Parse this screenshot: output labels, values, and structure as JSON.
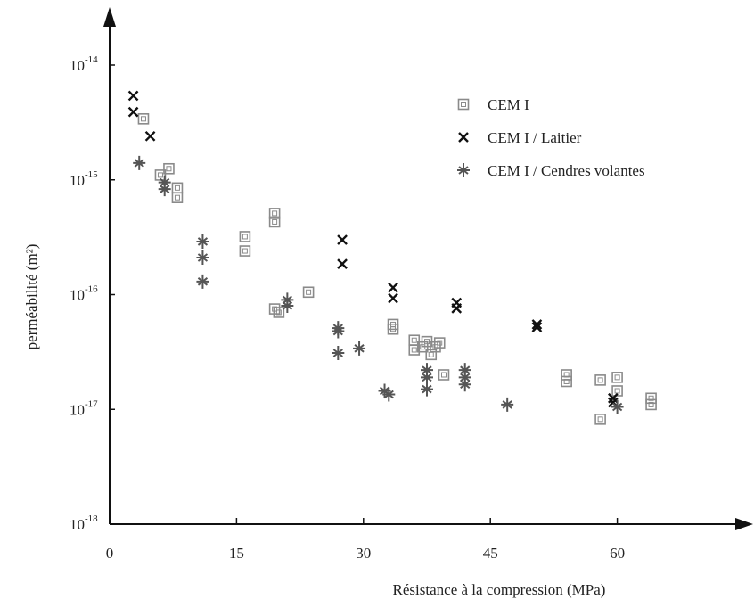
{
  "chart_data": {
    "type": "scatter",
    "xlabel": "Résistance à la compression (MPa)",
    "ylabel": "perméabilité (m²)",
    "xlim": [
      0,
      75
    ],
    "ylim": [
      1e-18,
      1e-14
    ],
    "yscale": "log",
    "grid": false,
    "legend_position": "top-right",
    "x_ticks": [
      {
        "value": 0,
        "label": "0"
      },
      {
        "value": 15,
        "label": "15"
      },
      {
        "value": 30,
        "label": "30"
      },
      {
        "value": 45,
        "label": "45"
      },
      {
        "value": 60,
        "label": "60"
      }
    ],
    "y_ticks": [
      {
        "value": 1e-14,
        "base": "10",
        "exp": "-14"
      },
      {
        "value": 1e-15,
        "base": "10",
        "exp": "-15"
      },
      {
        "value": 1e-16,
        "base": "10",
        "exp": "-16"
      },
      {
        "value": 1e-17,
        "base": "10",
        "exp": "-17"
      },
      {
        "value": 1e-18,
        "base": "10",
        "exp": "-18"
      }
    ],
    "series": [
      {
        "name": "CEM I",
        "marker": "square",
        "color": "#8a8a8a",
        "points": [
          [
            4,
            3.4e-15
          ],
          [
            6,
            1.1e-15
          ],
          [
            7,
            1.25e-15
          ],
          [
            8,
            8.5e-16
          ],
          [
            8,
            7e-16
          ],
          [
            16,
            3.2e-16
          ],
          [
            16,
            2.4e-16
          ],
          [
            19.5,
            5.1e-16
          ],
          [
            19.5,
            4.3e-16
          ],
          [
            19.5,
            7.5e-17
          ],
          [
            20,
            7e-17
          ],
          [
            23.5,
            1.05e-16
          ],
          [
            33.5,
            5.5e-17
          ],
          [
            33.5,
            5e-17
          ],
          [
            36,
            4e-17
          ],
          [
            36,
            3.3e-17
          ],
          [
            37,
            3.5e-17
          ],
          [
            37.5,
            3.9e-17
          ],
          [
            38,
            3e-17
          ],
          [
            38.5,
            3.5e-17
          ],
          [
            39,
            3.8e-17
          ],
          [
            39.5,
            2e-17
          ],
          [
            54,
            2e-17
          ],
          [
            54,
            1.75e-17
          ],
          [
            58,
            1.8e-17
          ],
          [
            58,
            8.2e-18
          ],
          [
            60,
            1.9e-17
          ],
          [
            60,
            1.45e-17
          ],
          [
            64,
            1.25e-17
          ],
          [
            64,
            1.1e-17
          ]
        ]
      },
      {
        "name": "CEM I / Laitier",
        "marker": "x",
        "color": "#111111",
        "points": [
          [
            2.8,
            5.4e-15
          ],
          [
            2.8,
            3.9e-15
          ],
          [
            4.8,
            2.4e-15
          ],
          [
            27.5,
            3e-16
          ],
          [
            27.5,
            1.85e-16
          ],
          [
            33.5,
            1.15e-16
          ],
          [
            33.5,
            9.3e-17
          ],
          [
            41,
            8.5e-17
          ],
          [
            41,
            7.6e-17
          ],
          [
            50.5,
            5.5e-17
          ],
          [
            50.5,
            5.2e-17
          ],
          [
            59.5,
            1.25e-17
          ],
          [
            59.5,
            1.15e-17
          ]
        ]
      },
      {
        "name": "CEM I / Cendres volantes",
        "marker": "star",
        "color": "#555555",
        "points": [
          [
            3.5,
            1.4e-15
          ],
          [
            6.5,
            9.5e-16
          ],
          [
            6.5,
            8.3e-16
          ],
          [
            11,
            2.9e-16
          ],
          [
            11,
            2.1e-16
          ],
          [
            11,
            1.3e-16
          ],
          [
            21,
            8e-17
          ],
          [
            21,
            9e-17
          ],
          [
            27,
            5.1e-17
          ],
          [
            27,
            4.8e-17
          ],
          [
            27,
            3.1e-17
          ],
          [
            29.5,
            3.4e-17
          ],
          [
            32.5,
            1.45e-17
          ],
          [
            33,
            1.35e-17
          ],
          [
            37.5,
            2.2e-17
          ],
          [
            37.5,
            1.9e-17
          ],
          [
            37.5,
            1.5e-17
          ],
          [
            42,
            2.2e-17
          ],
          [
            42,
            1.9e-17
          ],
          [
            42,
            1.65e-17
          ],
          [
            47,
            1.1e-17
          ],
          [
            60,
            1.05e-17
          ]
        ]
      }
    ]
  }
}
